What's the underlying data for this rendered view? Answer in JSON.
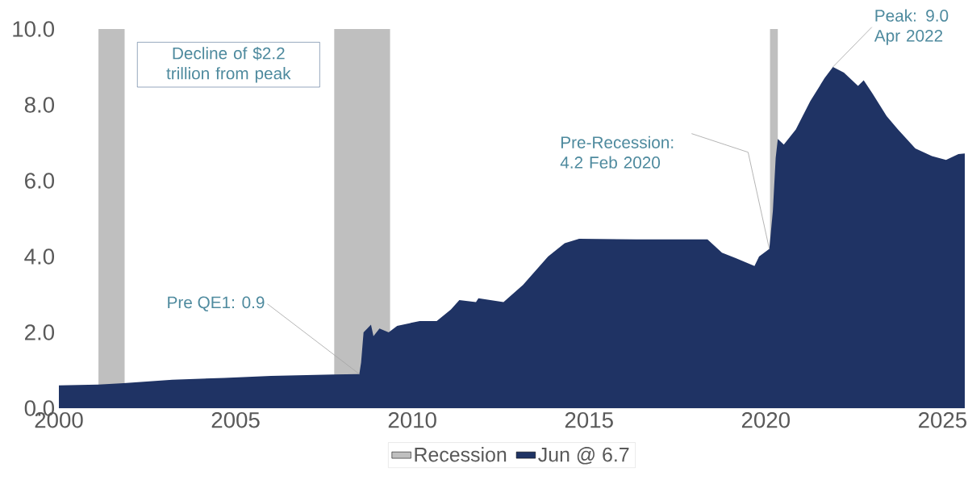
{
  "chart_data": {
    "type": "area",
    "x": [
      2000.0,
      2001.12,
      2001.83,
      2003.21,
      2004.68,
      2006.0,
      2007.76,
      2008.5,
      2008.55,
      2008.62,
      2008.83,
      2008.9,
      2009.07,
      2009.33,
      2009.57,
      2010.21,
      2010.69,
      2011.09,
      2011.33,
      2011.8,
      2011.87,
      2012.58,
      2013.13,
      2013.84,
      2014.31,
      2014.72,
      2016.33,
      2017.14,
      2017.94,
      2018.35,
      2018.76,
      2019.15,
      2019.68,
      2019.81,
      2020.1,
      2020.2,
      2020.28,
      2020.34,
      2020.51,
      2020.85,
      2021.26,
      2021.66,
      2021.9,
      2022.21,
      2022.61,
      2022.77,
      2023.02,
      2023.42,
      2023.74,
      2024.23,
      2024.7,
      2025.1,
      2025.45,
      2025.63
    ],
    "series": [
      {
        "name": "Jun @ 6.7",
        "color": "#1f3364",
        "values": [
          0.6,
          0.62,
          0.66,
          0.75,
          0.8,
          0.85,
          0.89,
          0.9,
          1.2,
          2.0,
          2.2,
          1.9,
          2.1,
          2.0,
          2.17,
          2.3,
          2.3,
          2.6,
          2.85,
          2.8,
          2.9,
          2.8,
          3.25,
          4.0,
          4.35,
          4.47,
          4.45,
          4.45,
          4.45,
          4.45,
          4.1,
          3.96,
          3.75,
          4.0,
          4.2,
          5.2,
          6.6,
          7.1,
          6.95,
          7.35,
          8.1,
          8.7,
          9.0,
          8.85,
          8.5,
          8.65,
          8.3,
          7.7,
          7.35,
          6.85,
          6.65,
          6.55,
          6.7,
          6.72
        ]
      }
    ],
    "xlim": [
      2000,
      2025.63
    ],
    "xticks": [
      2000,
      2005,
      2010,
      2015,
      2020,
      2025
    ],
    "ylim": [
      0,
      10
    ],
    "yticks": [
      {
        "value": 0,
        "label": "0.0"
      },
      {
        "value": 2,
        "label": "2.0"
      },
      {
        "value": 4,
        "label": "4.0"
      },
      {
        "value": 6,
        "label": "6.0"
      },
      {
        "value": 8,
        "label": "8.0"
      },
      {
        "value": 10,
        "label": "10.0"
      }
    ],
    "bands": [
      {
        "axis": "x",
        "from": 2001.12,
        "to": 2001.86,
        "label": "Recession",
        "color": "#bfbfbf"
      },
      {
        "axis": "x",
        "from": 2007.79,
        "to": 2009.37,
        "color": "#bfbfbf"
      },
      {
        "axis": "x",
        "from": 2020.12,
        "to": 2020.34,
        "color": "#bfbfbf"
      }
    ],
    "annotations": [
      "Decline of $2.2 trillion from peak",
      {
        "text": "Pre QE1: 0.9",
        "x": 2008.5,
        "y": 0.9
      },
      {
        "text": "Pre-Recession: 4.2 Feb 2020",
        "x": 2020.1,
        "y": 4.2
      },
      {
        "text": "Peak: 9.0 Apr 2022",
        "x": 2021.9,
        "y": 9.0
      }
    ],
    "legend": "bottom"
  }
}
